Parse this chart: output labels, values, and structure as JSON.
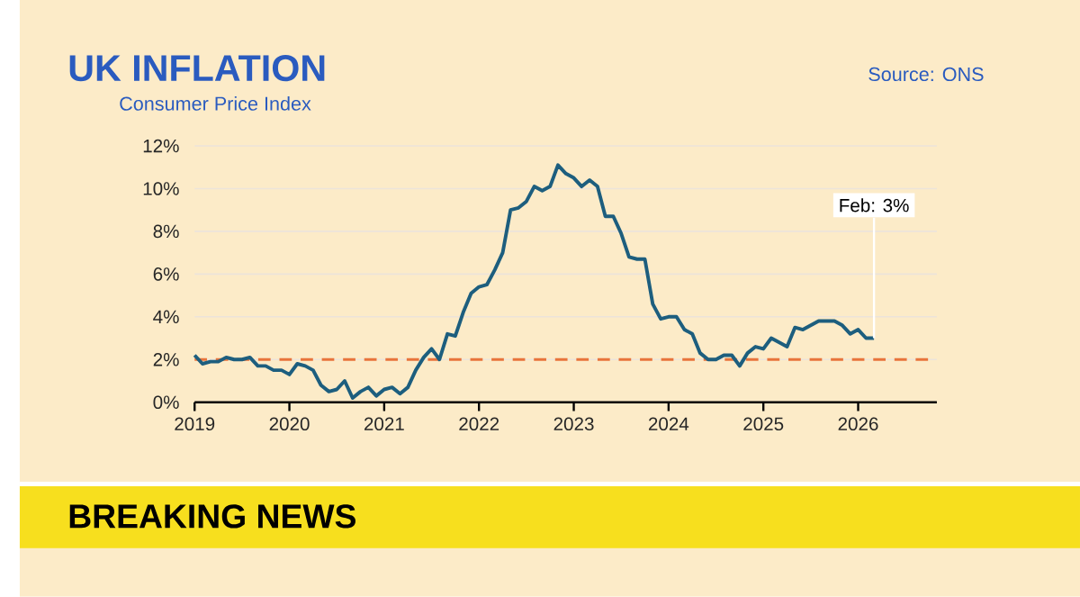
{
  "chart_data": {
    "type": "line",
    "title": "UK INFLATION",
    "subtitle": "Consumer Price Index",
    "x": [
      2019,
      2019.083,
      2019.167,
      2019.25,
      2019.333,
      2019.417,
      2019.5,
      2019.583,
      2019.667,
      2019.75,
      2019.833,
      2019.917,
      2020,
      2020.083,
      2020.167,
      2020.25,
      2020.333,
      2020.417,
      2020.5,
      2020.583,
      2020.667,
      2020.75,
      2020.833,
      2020.917,
      2021,
      2021.083,
      2021.167,
      2021.25,
      2021.333,
      2021.417,
      2021.5,
      2021.583,
      2021.667,
      2021.75,
      2021.833,
      2021.917,
      2022,
      2022.083,
      2022.167,
      2022.25,
      2022.333,
      2022.417,
      2022.5,
      2022.583,
      2022.667,
      2022.75,
      2022.833,
      2022.917,
      2023,
      2023.083,
      2023.167,
      2023.25,
      2023.333,
      2023.417,
      2023.5,
      2023.583,
      2023.667,
      2023.75,
      2023.833,
      2023.917,
      2024,
      2024.083,
      2024.167,
      2024.25,
      2024.333,
      2024.417,
      2024.5,
      2024.583,
      2024.667,
      2024.75,
      2024.833,
      2024.917,
      2025,
      2025.083,
      2025.167,
      2025.25,
      2025.333,
      2025.417,
      2025.5,
      2025.583,
      2025.667,
      2025.75,
      2025.833,
      2025.917,
      2026,
      2026.083,
      2026.167
    ],
    "series": [
      {
        "color": "#1d5e7e",
        "values": [
          2.2,
          1.8,
          1.9,
          1.9,
          2.1,
          2.0,
          2.0,
          2.1,
          1.7,
          1.7,
          1.5,
          1.5,
          1.3,
          1.8,
          1.7,
          1.5,
          0.8,
          0.5,
          0.6,
          1.0,
          0.2,
          0.5,
          0.7,
          0.3,
          0.6,
          0.7,
          0.4,
          0.7,
          1.5,
          2.1,
          2.5,
          2.0,
          3.2,
          3.1,
          4.2,
          5.1,
          5.4,
          5.5,
          6.2,
          7.0,
          9.0,
          9.1,
          9.4,
          10.1,
          9.9,
          10.1,
          11.1,
          10.7,
          10.5,
          10.1,
          10.4,
          10.1,
          8.7,
          8.7,
          7.9,
          6.8,
          6.7,
          6.7,
          4.6,
          3.9,
          4.0,
          4.0,
          3.4,
          3.2,
          2.3,
          2.0,
          2.0,
          2.2,
          2.2,
          1.7,
          2.3,
          2.6,
          2.5,
          3.0,
          2.8,
          2.6,
          3.5,
          3.4,
          3.6,
          3.8,
          3.8,
          3.8,
          3.6,
          3.2,
          3.4,
          3.0,
          3.0
        ]
      }
    ],
    "xlim": [
      2019,
      2026.83
    ],
    "xticks": [
      2019,
      2020,
      2021,
      2022,
      2023,
      2024,
      2025,
      2026
    ],
    "ylim": [
      0,
      12
    ],
    "yticks": [
      {
        "value": 0,
        "label": "0%"
      },
      {
        "value": 2,
        "label": "2%"
      },
      {
        "value": 4,
        "label": "4%"
      },
      {
        "value": 6,
        "label": "6%"
      },
      {
        "value": 8,
        "label": "8%"
      },
      {
        "value": 10,
        "label": "10%"
      },
      {
        "value": 12,
        "label": "12%"
      }
    ],
    "grid": "y",
    "ref_lines": [
      {
        "axis": "y",
        "value": 2,
        "color": "#e8743b",
        "line_style": "dashed"
      }
    ],
    "annotations": [
      {
        "text": "Feb: 3%",
        "x": 2026.167,
        "y": 3
      },
      "Source: ONS",
      "BREAKING NEWS"
    ]
  }
}
